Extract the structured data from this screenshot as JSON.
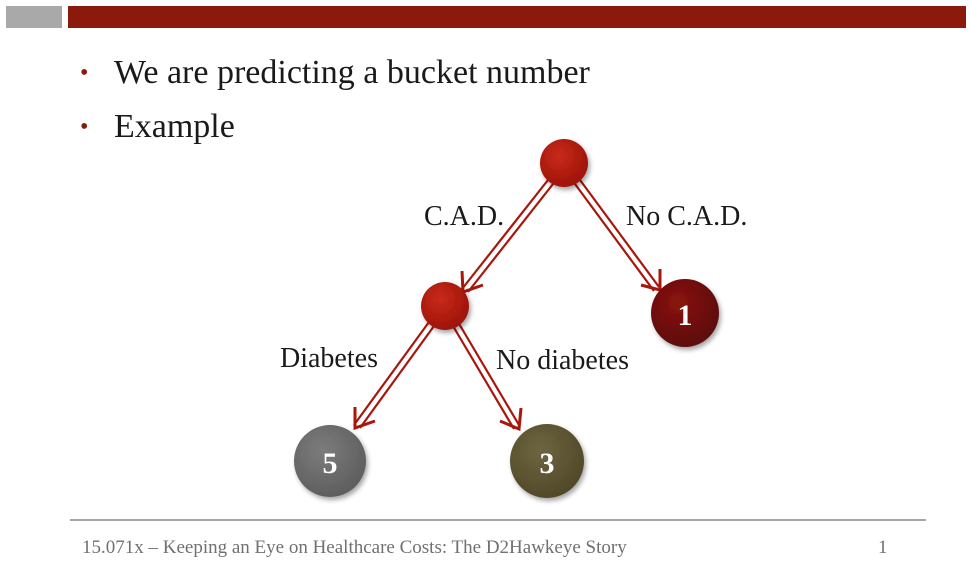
{
  "bullets": [
    "We are predicting a bucket number",
    "Example"
  ],
  "tree": {
    "edges": {
      "cad": "C.A.D.",
      "no_cad": "No C.A.D.",
      "diabetes": "Diabetes",
      "no_diabetes": "No diabetes"
    },
    "leaves": {
      "bucket_1": "1",
      "bucket_5": "5",
      "bucket_3": "3"
    }
  },
  "colors": {
    "accent": "#8b1a0c",
    "node_red": "#a8160c",
    "leaf_1": "#6b0c0a",
    "leaf_5": "#6b6b6b",
    "leaf_3": "#5b5230"
  },
  "footer": {
    "text": "15.071x – Keeping an Eye on Healthcare Costs: The D2Hawkeye Story",
    "page": "1"
  }
}
